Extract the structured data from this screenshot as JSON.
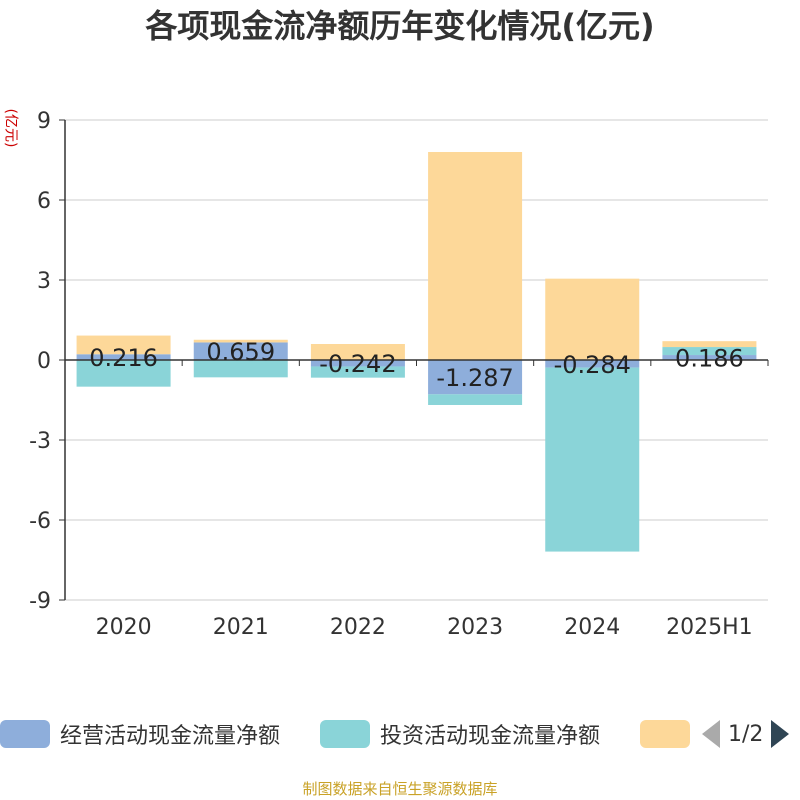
{
  "title": "各项现金流净额历年变化情况(亿元)",
  "unit": "(亿元)",
  "source": "制图数据来自恒生聚源数据库",
  "pager": {
    "text": "1/2",
    "prev_icon": "triangle-left-icon",
    "next_icon": "triangle-right-icon"
  },
  "colors": {
    "operating": "#8eaedb",
    "investing": "#8ad4d8",
    "financing": "#fdd899",
    "axis": "#333333",
    "grid": "#cccccc"
  },
  "chart_data": {
    "type": "bar",
    "stacked": true,
    "categories": [
      "2020",
      "2021",
      "2022",
      "2023",
      "2024",
      "2025H1"
    ],
    "series": [
      {
        "name": "经营活动现金流量净额",
        "values": [
          0.216,
          0.659,
          -0.242,
          -1.287,
          -0.284,
          0.186
        ],
        "labels": [
          "0.216",
          "0.659",
          "-0.242",
          "-1.287",
          "-0.284",
          "0.186"
        ]
      },
      {
        "name": "投资活动现金流量净额",
        "values": [
          -1.0,
          -0.65,
          -0.42,
          -0.4,
          -6.9,
          0.3
        ]
      },
      {
        "name": "",
        "values": [
          0.7,
          0.1,
          0.6,
          7.8,
          3.05,
          0.22
        ]
      }
    ],
    "ylim": [
      -9,
      9
    ],
    "yticks": [
      -9,
      -6,
      -3,
      0,
      3,
      6,
      9
    ],
    "grid": true,
    "legend_position": "bottom"
  }
}
